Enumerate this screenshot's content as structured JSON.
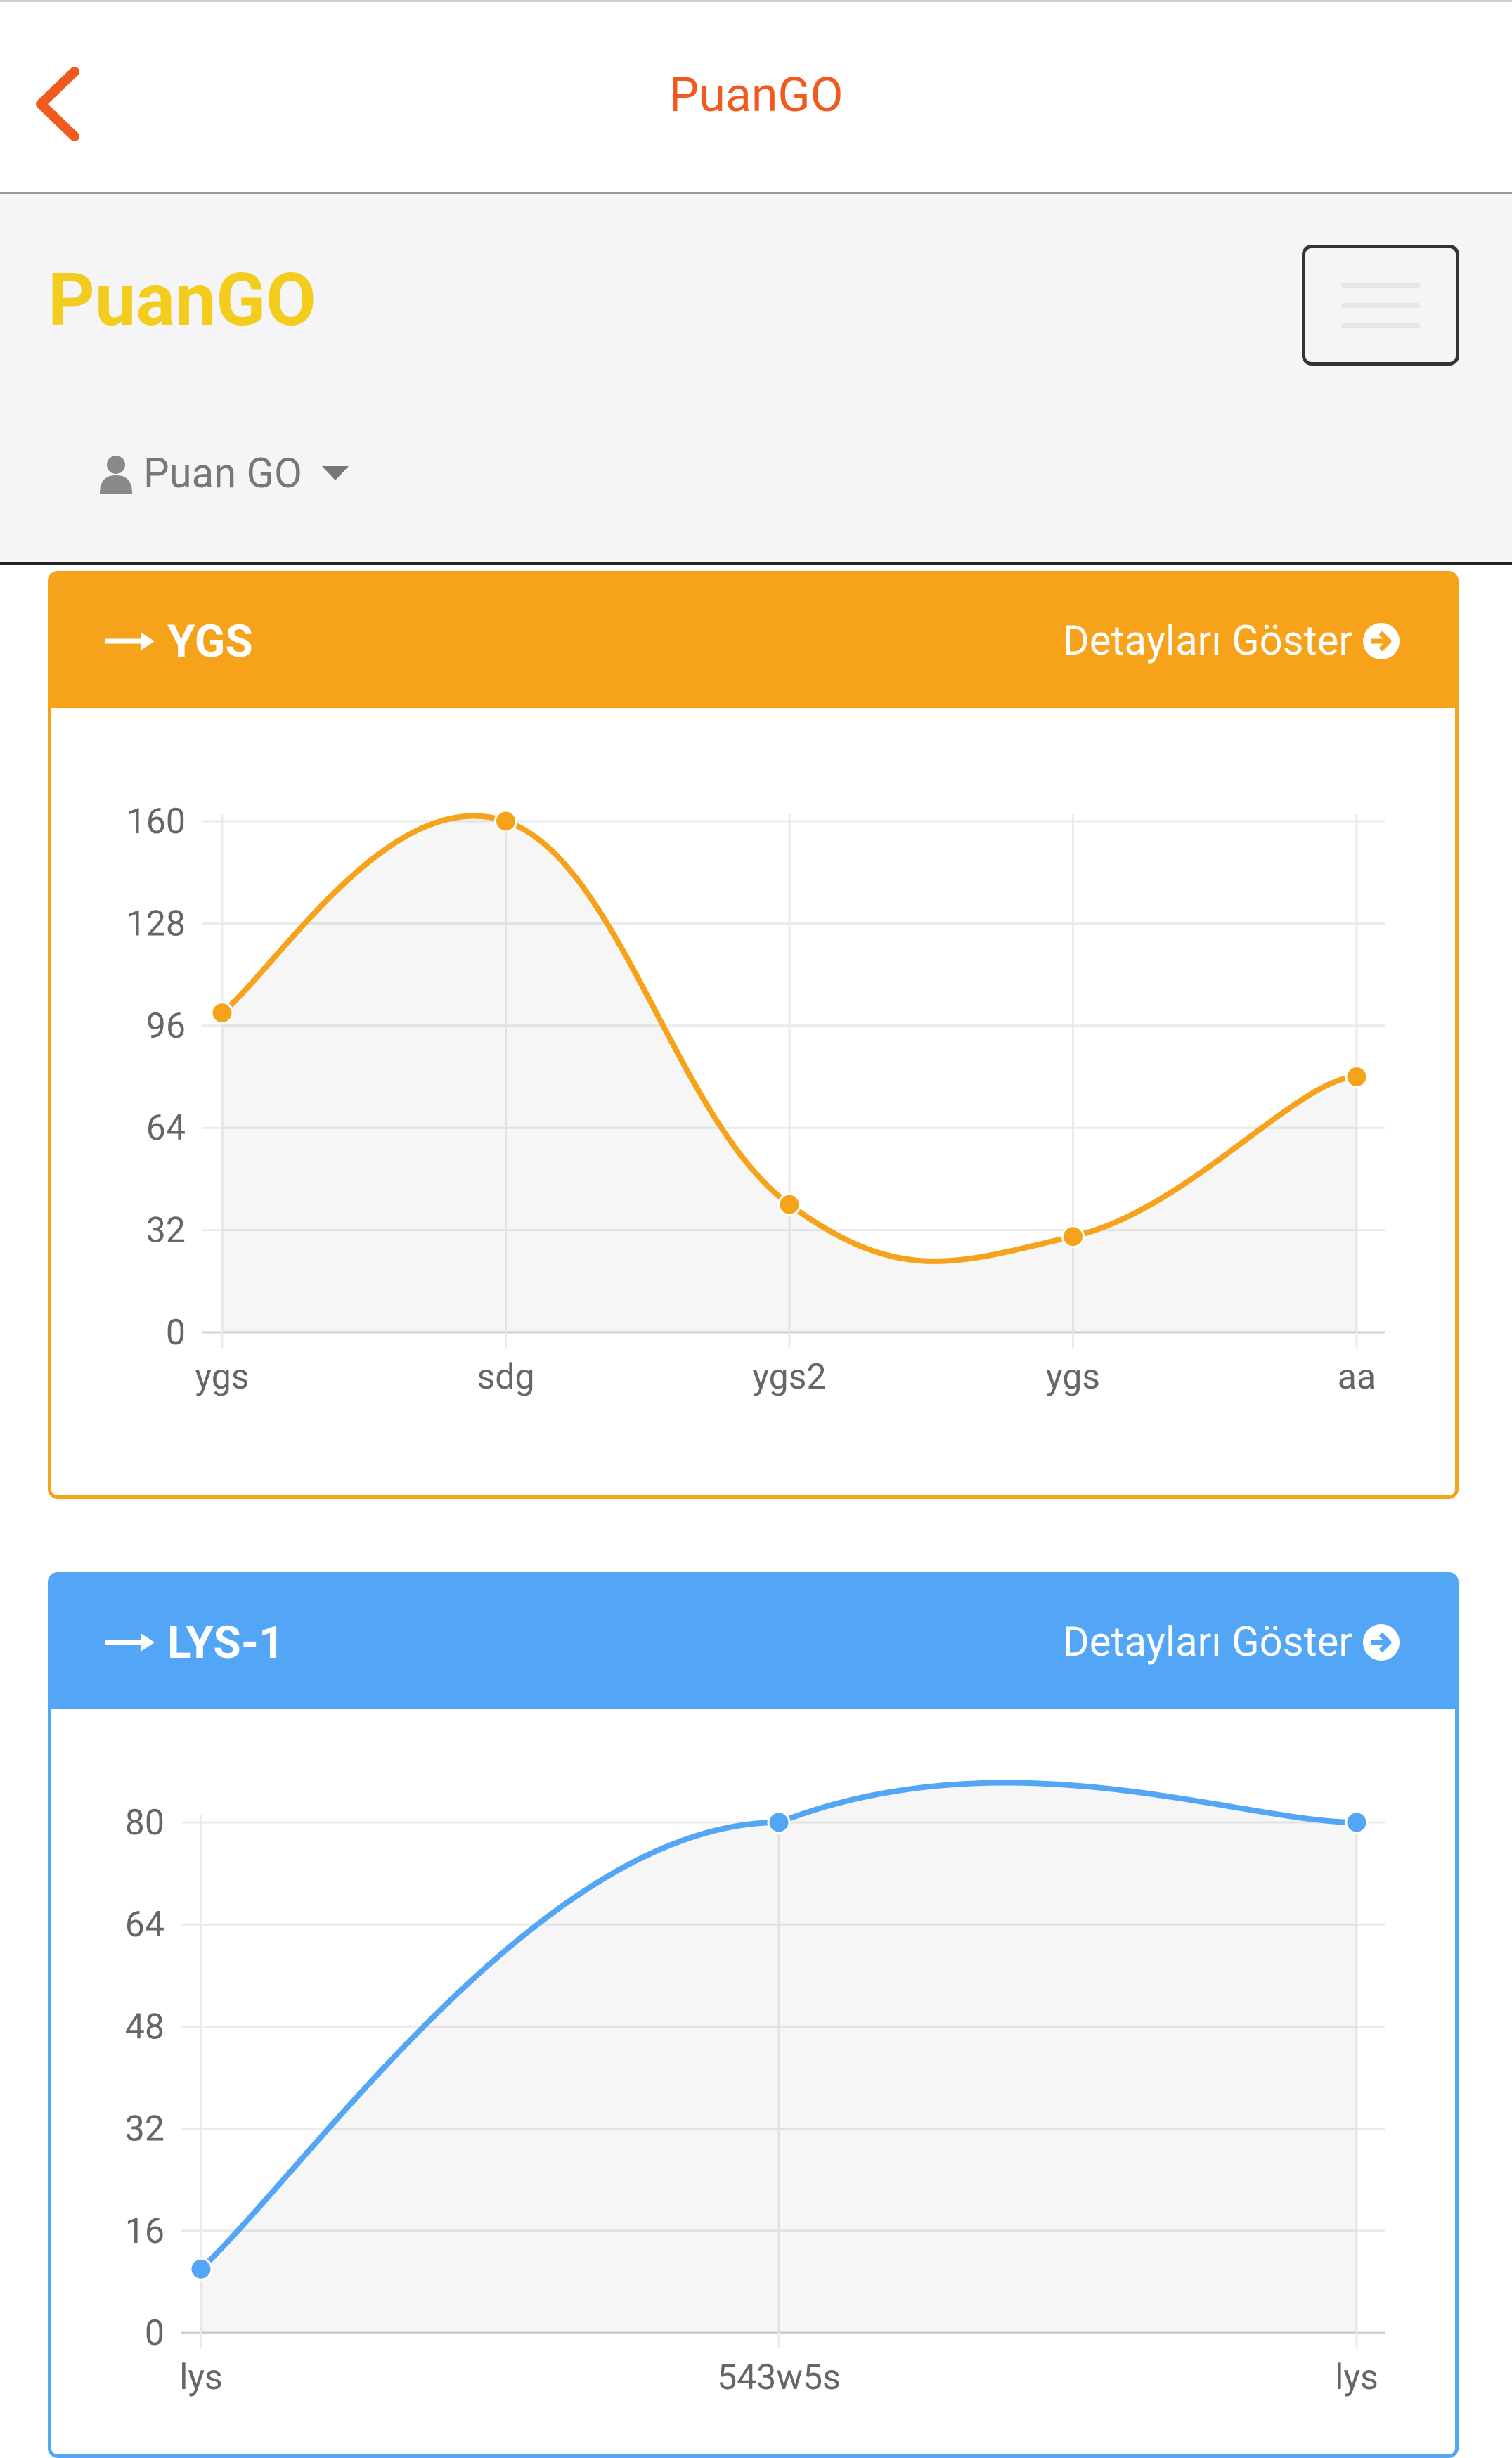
{
  "appbar": {
    "title": "PuanGO",
    "accent_color": "#f05a1f"
  },
  "navbar": {
    "brand": "PuanGO",
    "brand_color": "#f2cd1d",
    "user_label": "Puan GO"
  },
  "panels": [
    {
      "title": "YGS",
      "details_label": "Detayları Göster",
      "color": "#f7a21b"
    },
    {
      "title": "LYS-1",
      "details_label": "Detayları Göster",
      "color": "#52a6f5"
    }
  ],
  "chart_data": [
    {
      "type": "line",
      "categories": [
        "ygs",
        "sdg",
        "ygs2",
        "ygs",
        "aa"
      ],
      "series": [
        {
          "values": [
            100,
            160,
            40,
            30,
            80
          ]
        }
      ],
      "ylim": [
        0,
        160
      ],
      "yticks": [
        0,
        32,
        64,
        96,
        128,
        160
      ],
      "grid": true,
      "smooth": true,
      "filled": true,
      "color": "#f7a21b"
    },
    {
      "type": "line",
      "categories": [
        "lys",
        "543w5s",
        "lys"
      ],
      "series": [
        {
          "values": [
            10,
            80,
            80
          ]
        }
      ],
      "ylim": [
        0,
        80
      ],
      "yticks": [
        0,
        16,
        32,
        48,
        64,
        80
      ],
      "grid": true,
      "smooth": true,
      "filled": true,
      "color": "#52a6f5"
    }
  ]
}
